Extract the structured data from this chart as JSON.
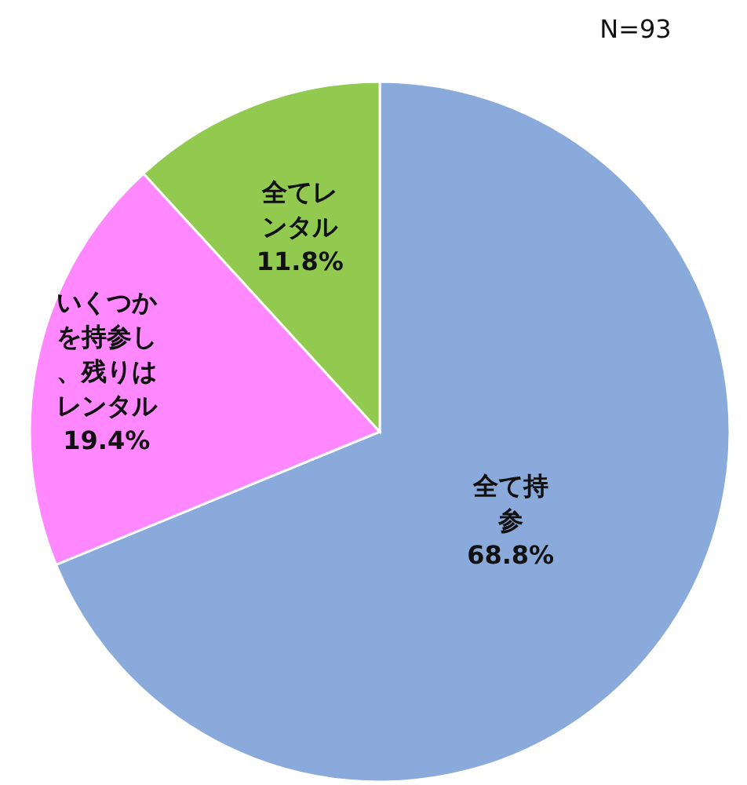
{
  "chart_data": {
    "type": "pie",
    "categories": [
      "全て持参",
      "いくつかを持参し、残りはレンタル",
      "全てレンタル"
    ],
    "values": [
      68.8,
      19.4,
      11.8
    ],
    "value_labels": [
      "68.8%",
      "19.4%",
      "11.8%"
    ],
    "colors": [
      "#8aaadc",
      "#ff88ff",
      "#92c94f"
    ],
    "annotations": [
      "N=93"
    ]
  }
}
